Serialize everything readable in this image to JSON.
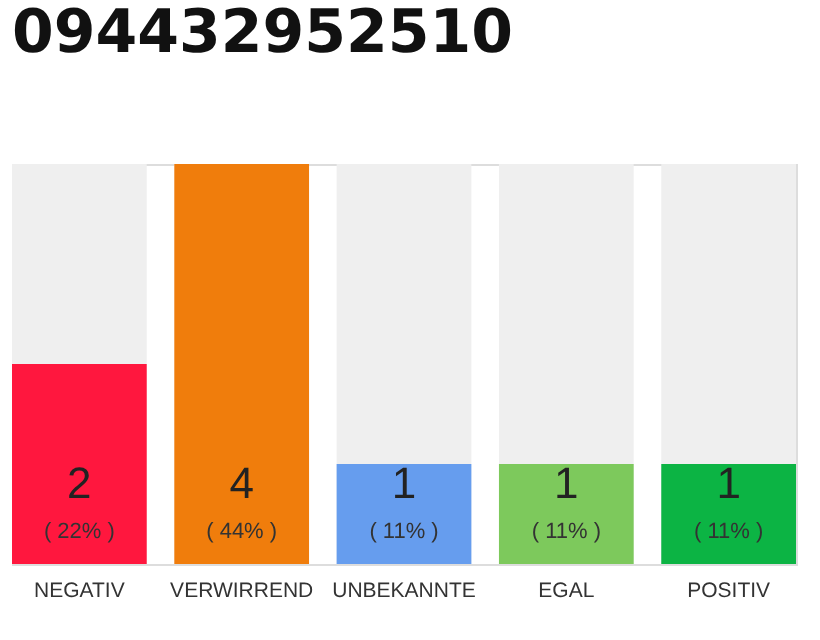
{
  "chart_data": {
    "type": "bar",
    "title": "094432952510",
    "categories": [
      "NEGATIV",
      "VERWIRREND",
      "UNBEKANNTE",
      "EGAL",
      "POSITIV"
    ],
    "values": [
      2,
      4,
      1,
      1,
      1
    ],
    "colors": [
      "#ff173e",
      "#f07d0c",
      "#669dee",
      "#7dc95c",
      "#0cb444"
    ],
    "ylim": [
      0,
      4
    ],
    "tick_labels": "x",
    "data_labels": true,
    "grid": false,
    "annotations": [
      "( 22% )",
      "( 44% )",
      "( 11% )",
      "( 11% )",
      "( 11% )"
    ]
  }
}
